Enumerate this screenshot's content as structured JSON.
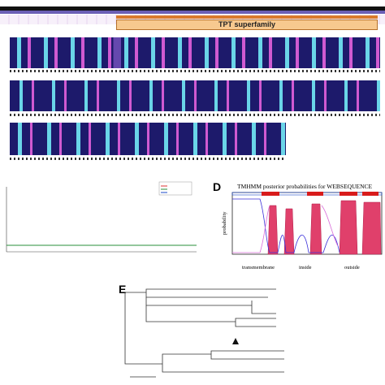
{
  "panel_a": {
    "domain_label": "TPT superfamily"
  },
  "panel_d": {
    "letter": "D",
    "title": "TMHMM posterior probabilities for WEBSEQUENCE",
    "y_axis_label": "probability",
    "legend": {
      "transmembrane": "transmembrane",
      "inside": "inside",
      "outside": "outside"
    }
  },
  "panel_e": {
    "letter": "E"
  }
}
